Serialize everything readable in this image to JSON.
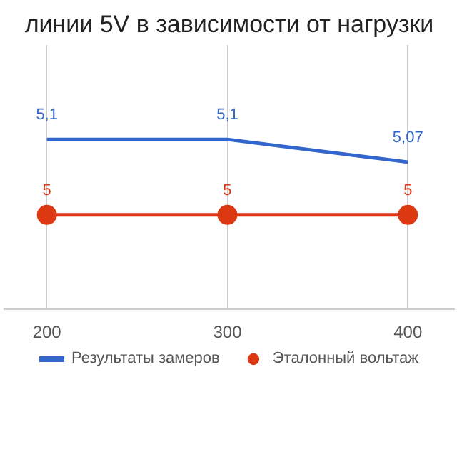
{
  "chart_data": {
    "type": "line",
    "title": "линии 5V в зависимости от нагрузки",
    "x": [
      200,
      300,
      400
    ],
    "series": [
      {
        "name": "Результаты замеров",
        "color": "#3366cc",
        "values": [
          5.1,
          5.1,
          5.07
        ],
        "value_labels": [
          "5,1",
          "5,1",
          "5,07"
        ],
        "marker": "none"
      },
      {
        "name": "Эталонный вольтаж",
        "color": "#dc3912",
        "values": [
          5,
          5,
          5
        ],
        "value_labels": [
          "5",
          "5",
          "5"
        ],
        "marker": "circle"
      }
    ],
    "xlim": [
      176,
      426
    ],
    "xticks": [
      200,
      300,
      400
    ],
    "tick_labels": "x",
    "grid": "x",
    "legend": "bottom"
  }
}
